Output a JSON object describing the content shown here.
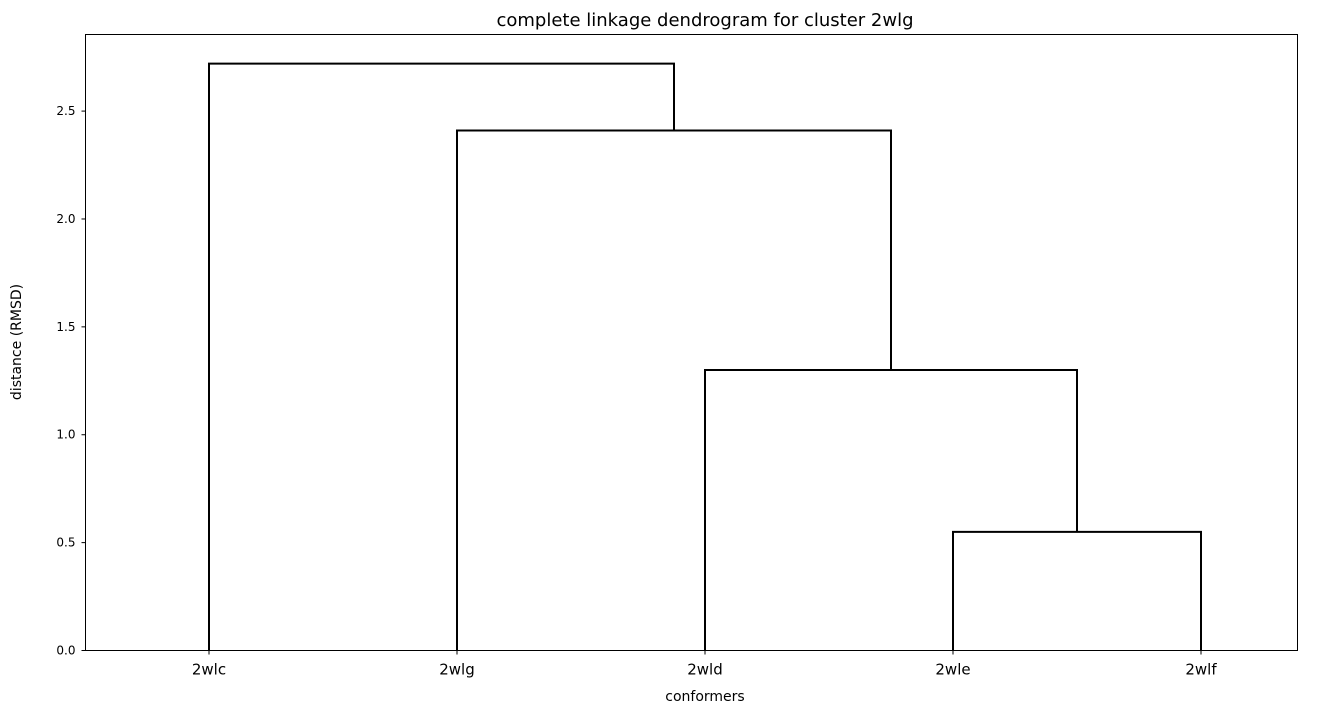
{
  "chart_data": {
    "type": "dendrogram",
    "title": "complete linkage dendrogram for cluster 2wlg",
    "xlabel": "conformers",
    "ylabel": "distance (RMSD)",
    "leaves": [
      "2wlc",
      "2wlg",
      "2wld",
      "2wle",
      "2wlf"
    ],
    "merges": [
      {
        "left": "2wle",
        "right": "2wlf",
        "height": 0.55
      },
      {
        "left": "2wld",
        "right": "(2wle, 2wlf)",
        "height": 1.3
      },
      {
        "left": "2wlg",
        "right": "(2wld, 2wle, 2wlf)",
        "height": 2.41
      },
      {
        "left": "2wlc",
        "right": "(2wlg, 2wld, 2wle, 2wlf)",
        "height": 2.72
      }
    ],
    "yticks": [
      "0.0",
      "0.5",
      "1.0",
      "1.5",
      "2.0",
      "2.5"
    ],
    "ylim": [
      0,
      2.855
    ],
    "grid": false
  }
}
